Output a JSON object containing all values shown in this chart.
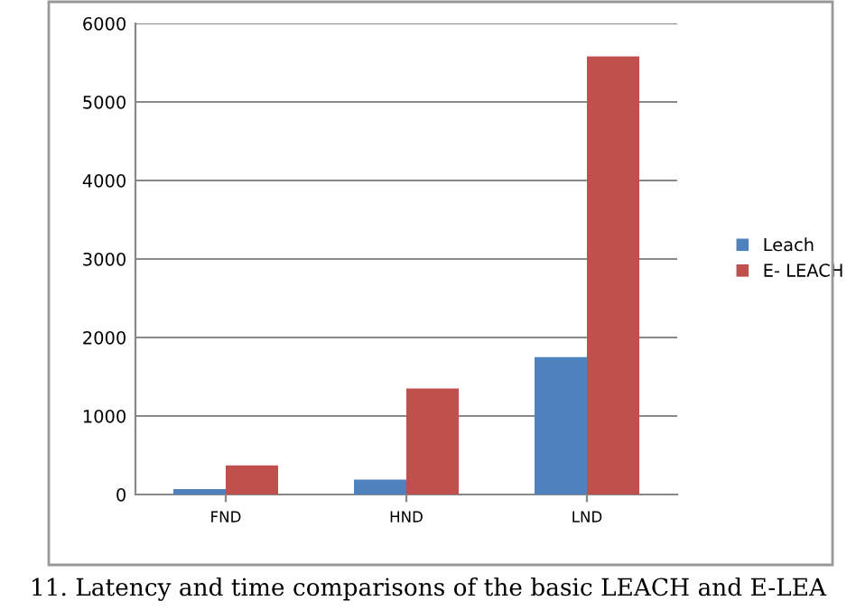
{
  "chart_data": {
    "type": "bar",
    "categories": [
      "FND",
      "HND",
      "LND"
    ],
    "series": [
      {
        "name": "Leach",
        "color": "#4f81bd",
        "values": [
          70,
          190,
          1750
        ]
      },
      {
        "name": "E- LEACH",
        "color": "#c0504d",
        "values": [
          370,
          1350,
          5580
        ]
      }
    ],
    "ylim": [
      0,
      6000
    ],
    "yticks": [
      0,
      1000,
      2000,
      3000,
      4000,
      5000,
      6000
    ],
    "grid": "y",
    "legend": "right",
    "annotations": [
      "11. Latency and time comparisons of the basic LEACH and E-LEA"
    ]
  }
}
